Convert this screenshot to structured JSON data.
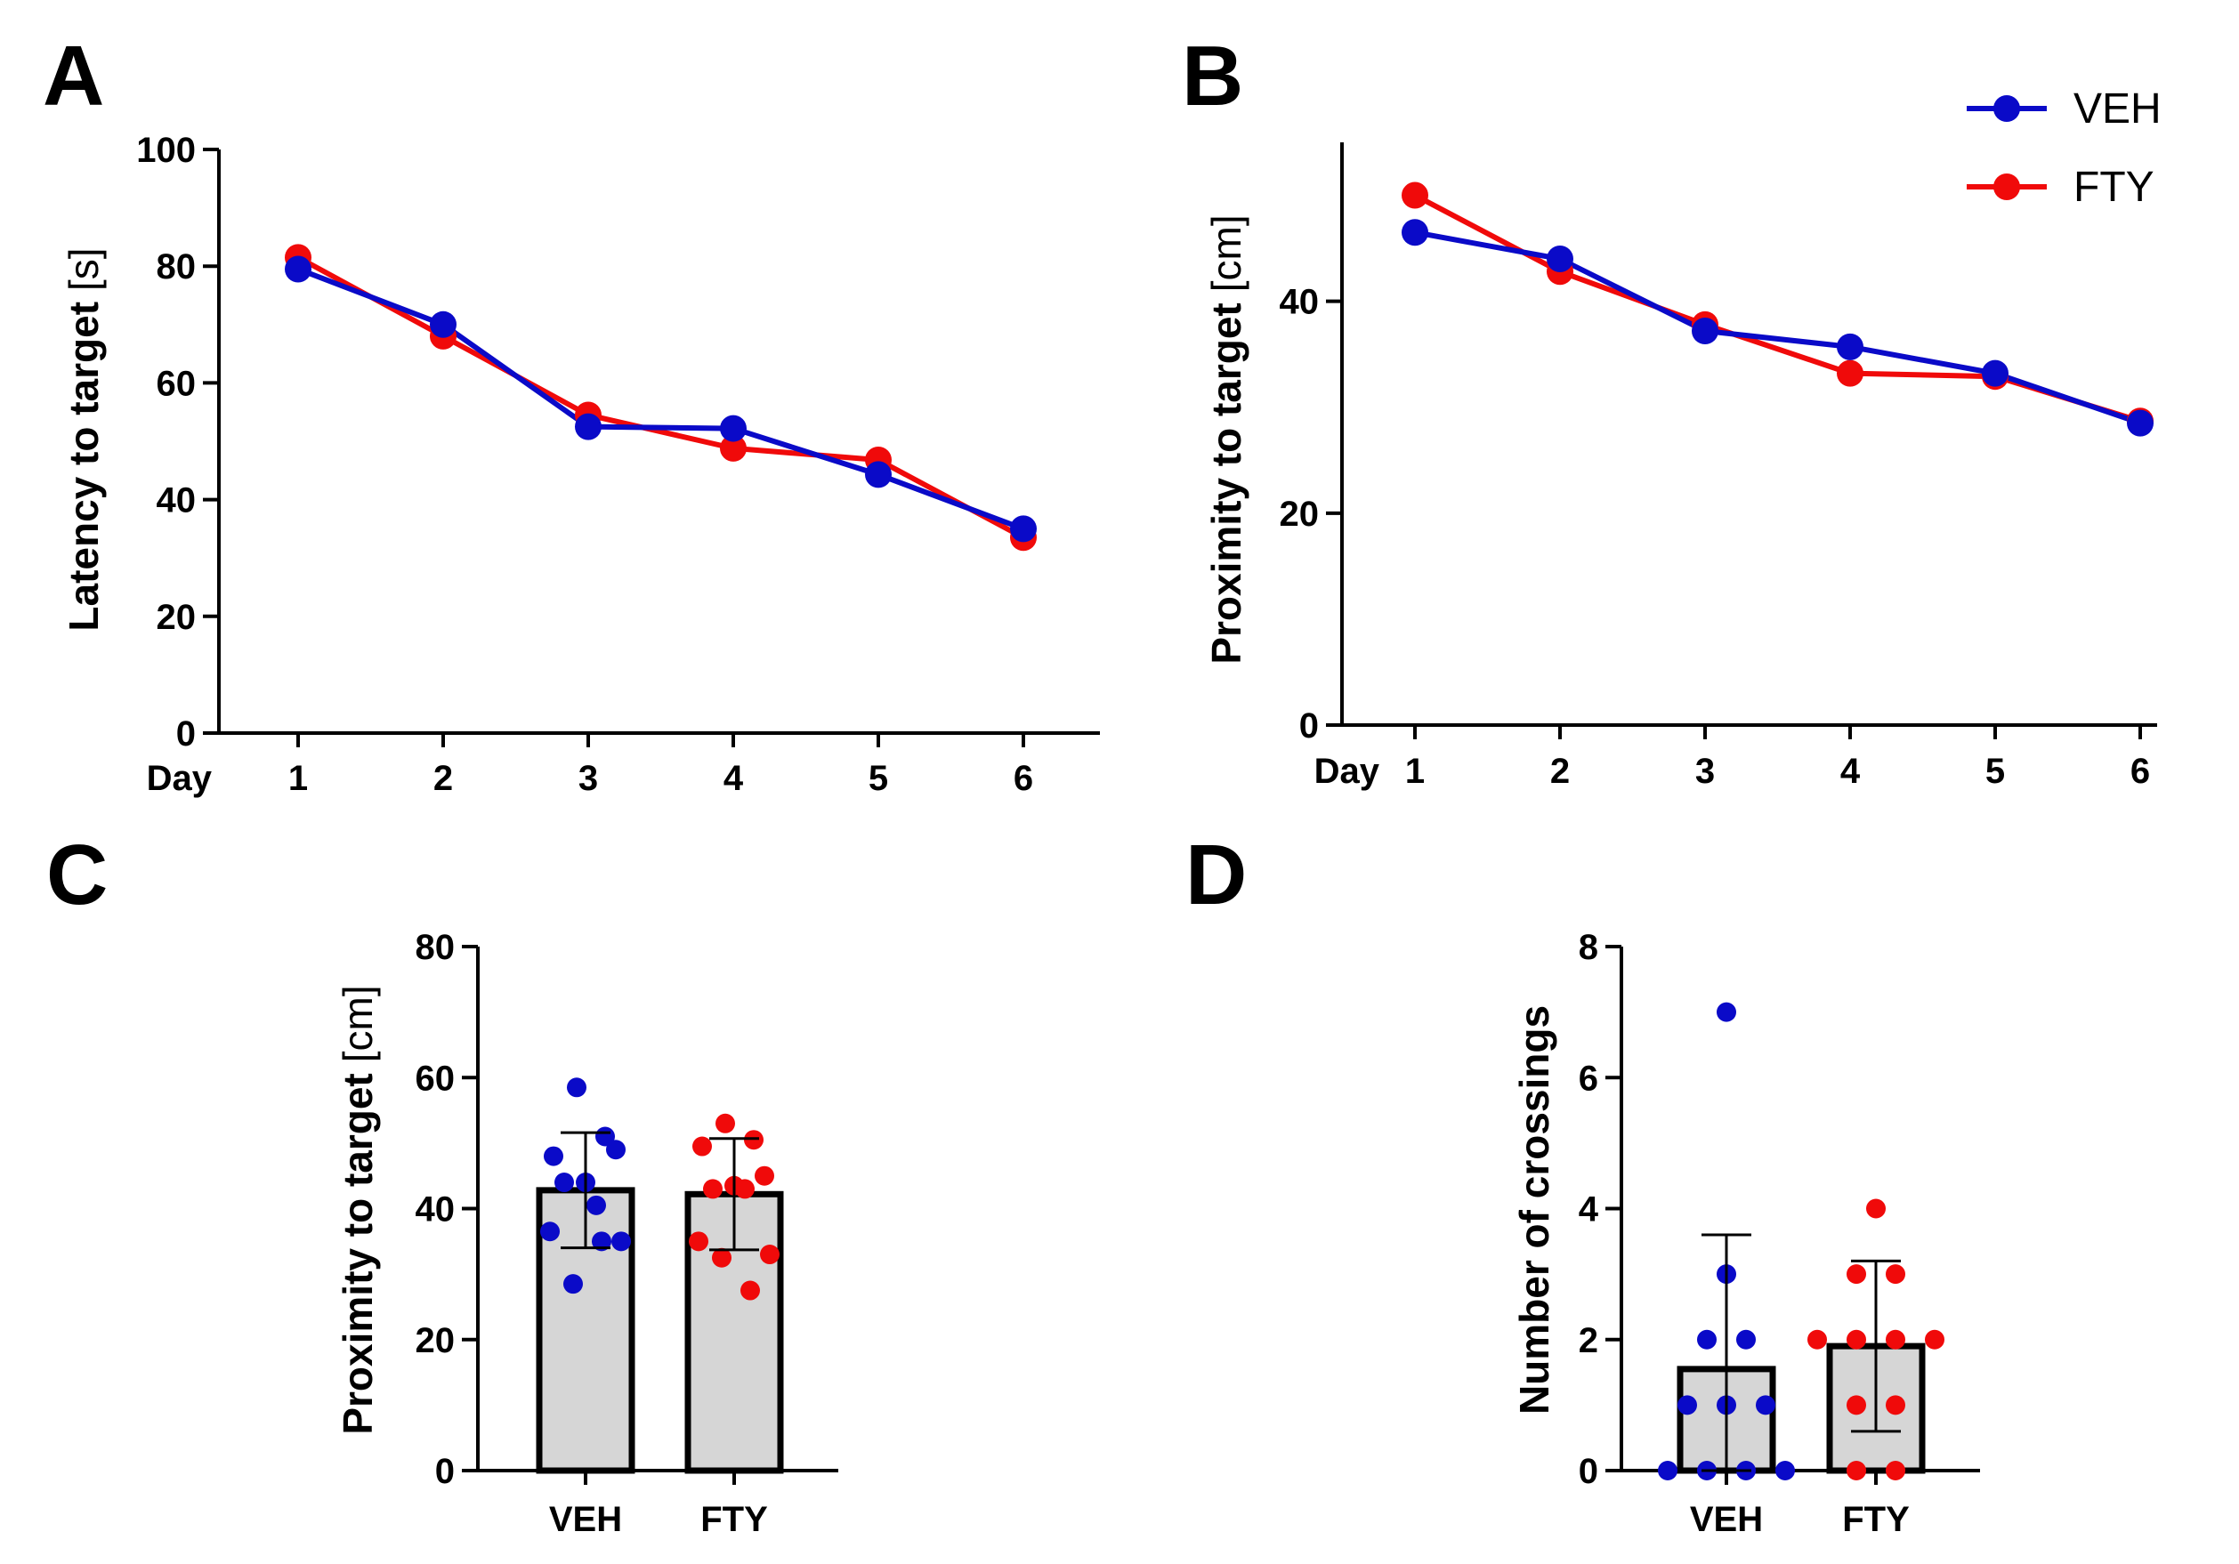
{
  "colors": {
    "veh": "#0a0ac8",
    "fty": "#f00a0a",
    "bar_fill": "#d6d6d6",
    "axis": "#000000"
  },
  "legend": {
    "items": [
      {
        "label": "VEH",
        "key": "veh"
      },
      {
        "label": "FTY",
        "key": "fty"
      }
    ],
    "position": "top-right of panel B"
  },
  "chart_data": [
    {
      "panel": "A",
      "type": "line",
      "xlabel": "Day",
      "ylabel": "Latency to target",
      "yunit": "[s]",
      "x": [
        1,
        2,
        3,
        4,
        5,
        6
      ],
      "x_tick_labels": [
        "1",
        "2",
        "3",
        "4",
        "5",
        "6"
      ],
      "ylim": [
        0,
        100
      ],
      "y_ticks": [
        0,
        20,
        40,
        60,
        80,
        100
      ],
      "series": [
        {
          "name": "FTY",
          "key": "fty",
          "values": [
            81.5,
            68,
            54.5,
            48.8,
            46.8,
            33.5
          ]
        },
        {
          "name": "VEH",
          "key": "veh",
          "values": [
            79.5,
            70,
            52.5,
            52.2,
            44.3,
            35
          ]
        }
      ]
    },
    {
      "panel": "B",
      "type": "line",
      "xlabel": "Day",
      "ylabel": "Proximity to target",
      "yunit": "[cm]",
      "x": [
        1,
        2,
        3,
        4,
        5,
        6
      ],
      "x_tick_labels": [
        "1",
        "2",
        "3",
        "4",
        "5",
        "6"
      ],
      "ylim": [
        0,
        55
      ],
      "y_ticks": [
        0,
        20,
        40
      ],
      "series": [
        {
          "name": "FTY",
          "key": "fty",
          "values": [
            50,
            42.8,
            37.8,
            33.2,
            32.9,
            28.7
          ]
        },
        {
          "name": "VEH",
          "key": "veh",
          "values": [
            46.5,
            44,
            37.2,
            35.7,
            33.2,
            28.5
          ]
        }
      ]
    },
    {
      "panel": "C",
      "type": "bar",
      "ylabel": "Proximity to target",
      "yunit": "[cm]",
      "categories": [
        "VEH",
        "FTY"
      ],
      "values": [
        42.8,
        42.2
      ],
      "error_sd": [
        8.8,
        8.5
      ],
      "ylim": [
        0,
        80
      ],
      "y_ticks": [
        0,
        20,
        40,
        60,
        80
      ],
      "points": [
        [
          58.5,
          51,
          48,
          49,
          44,
          44,
          40.5,
          36.5,
          35,
          28.5,
          35
        ],
        [
          53,
          50.5,
          49.5,
          45,
          43.5,
          43,
          43,
          35,
          33,
          32.5,
          27.5
        ]
      ],
      "point_keys": [
        "veh",
        "fty"
      ]
    },
    {
      "panel": "D",
      "type": "bar",
      "ylabel": "Number of crossings",
      "yunit": "",
      "categories": [
        "VEH",
        "FTY"
      ],
      "values": [
        1.55,
        1.9
      ],
      "error_sd": [
        2.05,
        1.3
      ],
      "ylim": [
        0,
        8
      ],
      "y_ticks": [
        0,
        2,
        4,
        6,
        8
      ],
      "points": [
        [
          7,
          3,
          2,
          2,
          1,
          1,
          1,
          0,
          0,
          0,
          0
        ],
        [
          4,
          3,
          3,
          2,
          2,
          2,
          2,
          1,
          1,
          0,
          0
        ]
      ],
      "point_keys": [
        "veh",
        "fty"
      ]
    }
  ]
}
